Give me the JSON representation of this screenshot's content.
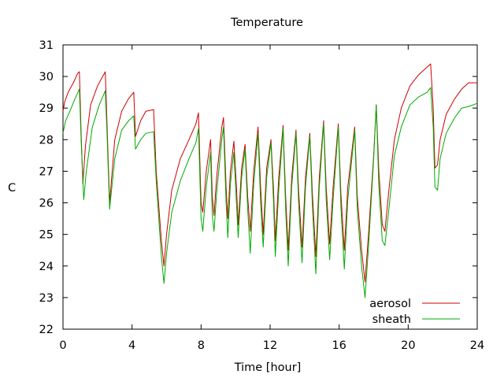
{
  "chart_data": {
    "type": "line",
    "title": "Temperature",
    "xlabel": "Time [hour]",
    "ylabel": "C",
    "xlim": [
      0,
      24
    ],
    "ylim": [
      22,
      31
    ],
    "xticks": [
      0,
      4,
      8,
      12,
      16,
      20,
      24
    ],
    "yticks": [
      22,
      23,
      24,
      25,
      26,
      27,
      28,
      29,
      30,
      31
    ],
    "grid": false,
    "legend_position": "bottom-right",
    "series": [
      {
        "name": "aerosol",
        "color": "#cc0000",
        "points": [
          [
            0,
            28.9
          ],
          [
            0.1,
            29.2
          ],
          [
            0.3,
            29.5
          ],
          [
            0.6,
            29.8
          ],
          [
            0.85,
            30.1
          ],
          [
            0.95,
            30.15
          ],
          [
            1.05,
            28.2
          ],
          [
            1.15,
            26.6
          ],
          [
            1.3,
            27.8
          ],
          [
            1.6,
            29.1
          ],
          [
            2.0,
            29.7
          ],
          [
            2.45,
            30.15
          ],
          [
            2.55,
            28.5
          ],
          [
            2.7,
            26.0
          ],
          [
            3.0,
            28.0
          ],
          [
            3.4,
            28.9
          ],
          [
            3.8,
            29.3
          ],
          [
            4.1,
            29.5
          ],
          [
            4.2,
            28.1
          ],
          [
            4.5,
            28.6
          ],
          [
            4.8,
            28.9
          ],
          [
            5.25,
            28.95
          ],
          [
            5.4,
            27.0
          ],
          [
            5.7,
            24.8
          ],
          [
            5.85,
            24.0
          ],
          [
            6.0,
            25.0
          ],
          [
            6.3,
            26.4
          ],
          [
            6.8,
            27.4
          ],
          [
            7.3,
            28.0
          ],
          [
            7.7,
            28.5
          ],
          [
            7.85,
            28.85
          ],
          [
            8.0,
            26.0
          ],
          [
            8.1,
            25.7
          ],
          [
            8.3,
            27.0
          ],
          [
            8.55,
            28.0
          ],
          [
            8.65,
            26.2
          ],
          [
            8.75,
            25.6
          ],
          [
            8.9,
            26.8
          ],
          [
            9.2,
            28.4
          ],
          [
            9.3,
            28.7
          ],
          [
            9.45,
            26.5
          ],
          [
            9.55,
            25.5
          ],
          [
            9.7,
            27.0
          ],
          [
            9.9,
            27.95
          ],
          [
            10.05,
            26.5
          ],
          [
            10.15,
            25.3
          ],
          [
            10.35,
            27.1
          ],
          [
            10.55,
            27.85
          ],
          [
            10.7,
            26.2
          ],
          [
            10.85,
            25.1
          ],
          [
            11.05,
            27.0
          ],
          [
            11.3,
            28.4
          ],
          [
            11.45,
            26.5
          ],
          [
            11.6,
            25.0
          ],
          [
            11.8,
            27.1
          ],
          [
            12.05,
            28.0
          ],
          [
            12.2,
            26.4
          ],
          [
            12.3,
            24.8
          ],
          [
            12.5,
            26.8
          ],
          [
            12.75,
            28.45
          ],
          [
            12.9,
            26.2
          ],
          [
            13.05,
            24.5
          ],
          [
            13.25,
            26.8
          ],
          [
            13.5,
            28.3
          ],
          [
            13.65,
            26.4
          ],
          [
            13.85,
            24.6
          ],
          [
            14.05,
            26.8
          ],
          [
            14.3,
            28.2
          ],
          [
            14.45,
            26.3
          ],
          [
            14.65,
            24.3
          ],
          [
            14.85,
            26.8
          ],
          [
            15.1,
            28.6
          ],
          [
            15.25,
            26.5
          ],
          [
            15.45,
            24.7
          ],
          [
            15.65,
            26.5
          ],
          [
            15.95,
            28.5
          ],
          [
            16.1,
            26.3
          ],
          [
            16.3,
            24.5
          ],
          [
            16.5,
            26.5
          ],
          [
            16.9,
            28.4
          ],
          [
            17.05,
            26.2
          ],
          [
            17.3,
            24.5
          ],
          [
            17.5,
            23.5
          ],
          [
            17.7,
            25.0
          ],
          [
            18.0,
            27.5
          ],
          [
            18.15,
            29.1
          ],
          [
            18.3,
            27.0
          ],
          [
            18.5,
            25.3
          ],
          [
            18.65,
            25.1
          ],
          [
            18.9,
            26.5
          ],
          [
            19.2,
            28.0
          ],
          [
            19.6,
            29.0
          ],
          [
            20.1,
            29.7
          ],
          [
            20.6,
            30.05
          ],
          [
            21.1,
            30.3
          ],
          [
            21.3,
            30.4
          ],
          [
            21.45,
            29.0
          ],
          [
            21.55,
            27.1
          ],
          [
            21.7,
            27.2
          ],
          [
            21.85,
            28.0
          ],
          [
            22.2,
            28.8
          ],
          [
            22.7,
            29.3
          ],
          [
            23.1,
            29.6
          ],
          [
            23.5,
            29.8
          ],
          [
            24,
            29.8
          ]
        ]
      },
      {
        "name": "sheath",
        "color": "#00aa00",
        "points": [
          [
            0,
            28.2
          ],
          [
            0.15,
            28.6
          ],
          [
            0.4,
            28.9
          ],
          [
            0.7,
            29.3
          ],
          [
            0.95,
            29.6
          ],
          [
            1.05,
            28.0
          ],
          [
            1.2,
            26.1
          ],
          [
            1.35,
            27.0
          ],
          [
            1.7,
            28.4
          ],
          [
            2.1,
            29.1
          ],
          [
            2.45,
            29.55
          ],
          [
            2.55,
            28.2
          ],
          [
            2.7,
            25.8
          ],
          [
            3.0,
            27.4
          ],
          [
            3.4,
            28.3
          ],
          [
            3.8,
            28.6
          ],
          [
            4.1,
            28.75
          ],
          [
            4.2,
            27.7
          ],
          [
            4.5,
            28.0
          ],
          [
            4.8,
            28.2
          ],
          [
            5.25,
            28.25
          ],
          [
            5.4,
            26.7
          ],
          [
            5.7,
            24.3
          ],
          [
            5.85,
            23.45
          ],
          [
            6.0,
            24.4
          ],
          [
            6.3,
            25.7
          ],
          [
            6.8,
            26.7
          ],
          [
            7.3,
            27.4
          ],
          [
            7.7,
            27.9
          ],
          [
            7.85,
            28.35
          ],
          [
            8.0,
            25.5
          ],
          [
            8.1,
            25.1
          ],
          [
            8.3,
            26.5
          ],
          [
            8.55,
            27.6
          ],
          [
            8.65,
            25.6
          ],
          [
            8.75,
            25.1
          ],
          [
            8.9,
            26.3
          ],
          [
            9.2,
            28.0
          ],
          [
            9.3,
            28.4
          ],
          [
            9.45,
            26.0
          ],
          [
            9.55,
            24.9
          ],
          [
            9.7,
            26.6
          ],
          [
            9.9,
            27.6
          ],
          [
            10.05,
            26.0
          ],
          [
            10.15,
            24.9
          ],
          [
            10.35,
            26.8
          ],
          [
            10.55,
            27.7
          ],
          [
            10.7,
            25.8
          ],
          [
            10.85,
            24.4
          ],
          [
            11.05,
            26.6
          ],
          [
            11.3,
            28.2
          ],
          [
            11.45,
            26.0
          ],
          [
            11.6,
            24.6
          ],
          [
            11.8,
            26.8
          ],
          [
            12.05,
            27.9
          ],
          [
            12.2,
            26.0
          ],
          [
            12.3,
            24.3
          ],
          [
            12.5,
            26.4
          ],
          [
            12.75,
            28.35
          ],
          [
            12.9,
            25.8
          ],
          [
            13.05,
            24.0
          ],
          [
            13.25,
            26.5
          ],
          [
            13.5,
            28.2
          ],
          [
            13.65,
            26.0
          ],
          [
            13.85,
            24.1
          ],
          [
            14.05,
            26.5
          ],
          [
            14.3,
            28.1
          ],
          [
            14.45,
            25.9
          ],
          [
            14.65,
            23.75
          ],
          [
            14.85,
            26.5
          ],
          [
            15.1,
            28.5
          ],
          [
            15.25,
            26.1
          ],
          [
            15.45,
            24.2
          ],
          [
            15.65,
            26.1
          ],
          [
            15.95,
            28.4
          ],
          [
            16.1,
            25.9
          ],
          [
            16.3,
            23.9
          ],
          [
            16.5,
            26.1
          ],
          [
            16.9,
            28.3
          ],
          [
            17.05,
            25.8
          ],
          [
            17.3,
            24.0
          ],
          [
            17.5,
            23.0
          ],
          [
            17.7,
            24.6
          ],
          [
            18.0,
            27.4
          ],
          [
            18.15,
            29.1
          ],
          [
            18.3,
            26.5
          ],
          [
            18.5,
            24.8
          ],
          [
            18.65,
            24.65
          ],
          [
            18.9,
            25.9
          ],
          [
            19.2,
            27.5
          ],
          [
            19.6,
            28.4
          ],
          [
            20.1,
            29.1
          ],
          [
            20.6,
            29.35
          ],
          [
            21.1,
            29.5
          ],
          [
            21.3,
            29.65
          ],
          [
            21.45,
            28.4
          ],
          [
            21.55,
            26.5
          ],
          [
            21.7,
            26.4
          ],
          [
            21.85,
            27.4
          ],
          [
            22.2,
            28.2
          ],
          [
            22.7,
            28.7
          ],
          [
            23.1,
            29.0
          ],
          [
            23.5,
            29.05
          ],
          [
            24,
            29.15
          ]
        ]
      }
    ]
  }
}
